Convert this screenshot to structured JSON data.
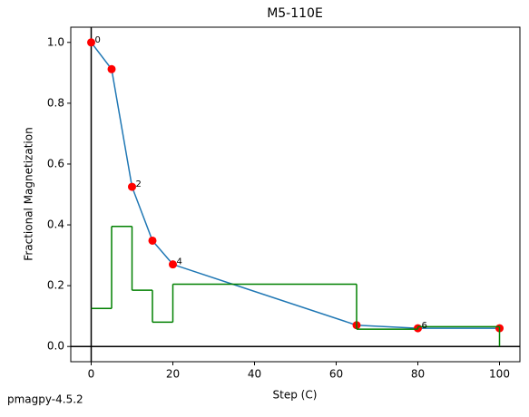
{
  "chart_data": {
    "type": "line",
    "title": "M5-110E",
    "x_label": "Step (C)",
    "y_label": "Fractional Magnetization",
    "x": [
      0,
      5,
      10,
      15,
      20,
      65,
      80,
      100
    ],
    "series": [
      {
        "color": "#1f77b4",
        "marker_color": "red",
        "values": [
          1.0,
          0.912,
          0.525,
          0.348,
          0.27,
          0.07,
          0.06,
          0.06
        ]
      },
      {
        "color": "green",
        "drawstyle": "steps-post",
        "values": [
          0.125,
          0.395,
          0.185,
          0.08,
          0.205,
          0.057,
          0.065,
          0
        ]
      }
    ],
    "annotations": [
      {
        "index": 0,
        "text": "0"
      },
      {
        "index": 2,
        "text": "2"
      },
      {
        "index": 4,
        "text": "4"
      },
      {
        "index": 6,
        "text": "6"
      }
    ],
    "xlim": [
      -5,
      105
    ],
    "ylim": [
      -0.05,
      1.05
    ],
    "xticks": [
      0,
      20,
      40,
      60,
      80,
      100
    ],
    "yticks": [
      {
        "value": 0,
        "label": "0.0"
      },
      0.2,
      0.4,
      0.6,
      0.8,
      {
        "value": 1,
        "label": "1.0"
      }
    ],
    "zero_lines": true,
    "grid": false
  },
  "footer": "pmagpy-4.5.2"
}
